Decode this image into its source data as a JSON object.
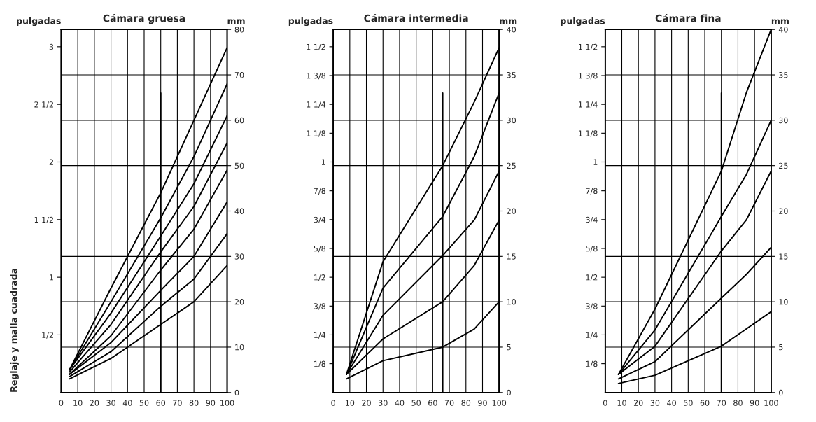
{
  "chart_data": [
    {
      "type": "line",
      "title": "Cámara gruesa",
      "ylabel": "pulgadas",
      "y2label": "mm",
      "annotations": [
        "Reglaje y malla cuadrada"
      ],
      "xlim": [
        0,
        100
      ],
      "xticks": [
        0,
        10,
        20,
        30,
        40,
        50,
        60,
        70,
        80,
        90,
        100
      ],
      "ylim": [
        0,
        3.1496
      ],
      "yticks": [
        {
          "value": 0.5,
          "label": "1/2"
        },
        1,
        {
          "value": 1.5,
          "label": "1 1/2"
        },
        2,
        {
          "value": 2.5,
          "label": "2 1/2"
        },
        3
      ],
      "y2lim": [
        0,
        80
      ],
      "y2ticks": [
        0,
        10,
        20,
        30,
        40,
        50,
        60,
        70,
        80
      ],
      "grid": true,
      "series": [
        {
          "color": "#000000",
          "axis": "y2",
          "x": [
            5,
            30,
            60,
            80,
            100
          ],
          "values": [
            5,
            23,
            44,
            60,
            76
          ]
        },
        {
          "color": "#000000",
          "axis": "y2",
          "x": [
            5,
            30,
            60,
            80,
            100
          ],
          "values": [
            5,
            20,
            38.5,
            52,
            68
          ]
        },
        {
          "color": "#000000",
          "axis": "y2",
          "x": [
            5,
            30,
            60,
            80,
            100
          ],
          "values": [
            5,
            17.5,
            34.5,
            46,
            61
          ]
        },
        {
          "color": "#000000",
          "axis": "y2",
          "x": [
            5,
            30,
            60,
            80,
            100
          ],
          "values": [
            4.5,
            15,
            31,
            41,
            55
          ]
        },
        {
          "color": "#000000",
          "axis": "y2",
          "x": [
            5,
            30,
            60,
            80,
            100
          ],
          "values": [
            4,
            12.5,
            27,
            36,
            49
          ]
        },
        {
          "color": "#000000",
          "axis": "y2",
          "x": [
            5,
            30,
            60,
            80,
            100
          ],
          "values": [
            4,
            11,
            22.5,
            30,
            42
          ]
        },
        {
          "color": "#000000",
          "axis": "y2",
          "x": [
            5,
            30,
            60,
            80,
            100
          ],
          "values": [
            3.5,
            9,
            19,
            25,
            35
          ]
        },
        {
          "color": "#000000",
          "axis": "y2",
          "x": [
            5,
            30,
            60,
            80,
            100
          ],
          "values": [
            3,
            7.5,
            15,
            20,
            28
          ]
        },
        {
          "color": "#000000",
          "axis": "y2",
          "x": [
            60,
            60
          ],
          "values": [
            0,
            66
          ]
        }
      ]
    },
    {
      "type": "line",
      "title": "Cámara intermedia",
      "ylabel": "pulgadas",
      "y2label": "mm",
      "xlim": [
        0,
        100
      ],
      "xticks": [
        0,
        10,
        20,
        30,
        40,
        50,
        60,
        70,
        80,
        90,
        100
      ],
      "ylim": [
        0,
        1.5748
      ],
      "yticks": [
        {
          "value": 0.125,
          "label": "1/8"
        },
        {
          "value": 0.25,
          "label": "1/4"
        },
        {
          "value": 0.375,
          "label": "3/8"
        },
        {
          "value": 0.5,
          "label": "1/2"
        },
        {
          "value": 0.625,
          "label": "5/8"
        },
        {
          "value": 0.75,
          "label": "3/4"
        },
        {
          "value": 0.875,
          "label": "7/8"
        },
        1,
        {
          "value": 1.125,
          "label": "1 1/8"
        },
        {
          "value": 1.25,
          "label": "1 1/4"
        },
        {
          "value": 1.375,
          "label": "1 3/8"
        },
        {
          "value": 1.5,
          "label": "1 1/2"
        }
      ],
      "y2lim": [
        0,
        40
      ],
      "y2ticks": [
        0,
        5,
        10,
        15,
        20,
        25,
        30,
        35,
        40
      ],
      "grid": true,
      "series": [
        {
          "color": "#000000",
          "axis": "y2",
          "x": [
            8,
            30,
            66,
            85,
            100
          ],
          "values": [
            2,
            14.4,
            25,
            32,
            38
          ]
        },
        {
          "color": "#000000",
          "axis": "y2",
          "x": [
            8,
            30,
            66,
            85,
            100
          ],
          "values": [
            2,
            11.5,
            19.4,
            26,
            33
          ]
        },
        {
          "color": "#000000",
          "axis": "y2",
          "x": [
            8,
            30,
            66,
            85,
            100
          ],
          "values": [
            2,
            8.5,
            15.1,
            19,
            24.4
          ]
        },
        {
          "color": "#000000",
          "axis": "y2",
          "x": [
            8,
            30,
            66,
            85,
            100
          ],
          "values": [
            2,
            5.9,
            10,
            14,
            19
          ]
        },
        {
          "color": "#000000",
          "axis": "y2",
          "x": [
            8,
            30,
            66,
            85,
            100
          ],
          "values": [
            1.5,
            3.5,
            5,
            7,
            10
          ]
        },
        {
          "color": "#000000",
          "axis": "y2",
          "x": [
            66,
            66
          ],
          "values": [
            0,
            33
          ]
        }
      ]
    },
    {
      "type": "line",
      "title": "Cámara fina",
      "ylabel": "pulgadas",
      "y2label": "mm",
      "xlim": [
        0,
        100
      ],
      "xticks": [
        0,
        10,
        20,
        30,
        40,
        50,
        60,
        70,
        80,
        90,
        100
      ],
      "ylim": [
        0,
        1.5748
      ],
      "yticks": [
        {
          "value": 0.125,
          "label": "1/8"
        },
        {
          "value": 0.25,
          "label": "1/4"
        },
        {
          "value": 0.375,
          "label": "3/8"
        },
        {
          "value": 0.5,
          "label": "1/2"
        },
        {
          "value": 0.625,
          "label": "5/8"
        },
        {
          "value": 0.75,
          "label": "3/4"
        },
        {
          "value": 0.875,
          "label": "7/8"
        },
        1,
        {
          "value": 1.125,
          "label": "1 1/8"
        },
        {
          "value": 1.25,
          "label": "1 1/4"
        },
        {
          "value": 1.375,
          "label": "1 3/8"
        },
        {
          "value": 1.5,
          "label": "1 1/2"
        }
      ],
      "y2lim": [
        0,
        40
      ],
      "y2ticks": [
        0,
        5,
        10,
        15,
        20,
        25,
        30,
        35,
        40
      ],
      "grid": true,
      "series": [
        {
          "color": "#000000",
          "axis": "y2",
          "x": [
            8,
            30,
            70,
            85,
            100
          ],
          "values": [
            2,
            9.2,
            24.4,
            33,
            40
          ]
        },
        {
          "color": "#000000",
          "axis": "y2",
          "x": [
            8,
            30,
            70,
            85,
            100
          ],
          "values": [
            2,
            6.9,
            19.4,
            24,
            30
          ]
        },
        {
          "color": "#000000",
          "axis": "y2",
          "x": [
            8,
            30,
            70,
            85,
            100
          ],
          "values": [
            2,
            5.1,
            15.6,
            19,
            24.4
          ]
        },
        {
          "color": "#000000",
          "axis": "y2",
          "x": [
            8,
            30,
            70,
            85,
            100
          ],
          "values": [
            1.5,
            3.4,
            10.4,
            13,
            16
          ]
        },
        {
          "color": "#000000",
          "axis": "y2",
          "x": [
            8,
            30,
            70,
            85,
            100
          ],
          "values": [
            1,
            1.9,
            5.1,
            7,
            8.9
          ]
        },
        {
          "color": "#000000",
          "axis": "y2",
          "x": [
            70,
            70
          ],
          "values": [
            0,
            33
          ]
        }
      ]
    }
  ]
}
